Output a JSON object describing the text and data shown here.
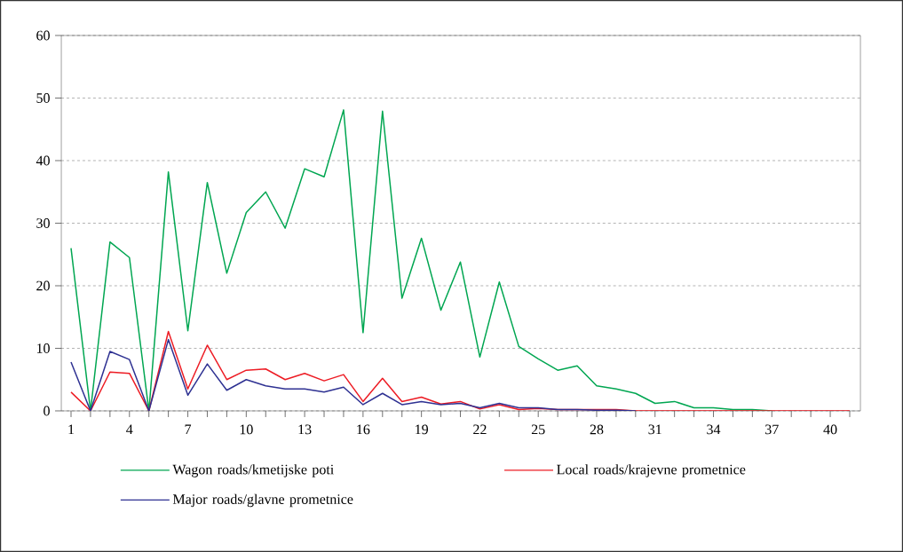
{
  "chart_data": {
    "type": "line",
    "categories": [
      "1",
      null,
      null,
      "4",
      null,
      null,
      "7",
      null,
      null,
      "10",
      null,
      null,
      "13",
      null,
      null,
      "16",
      null,
      null,
      "19",
      null,
      null,
      "22",
      null,
      null,
      "25",
      null,
      null,
      "28",
      null,
      null,
      "31",
      null,
      null,
      "34",
      null,
      null,
      "37",
      null,
      null,
      "40",
      null
    ],
    "series": [
      {
        "name": "Wagon roads/kmetijske poti",
        "color": "#00a651",
        "values": [
          26,
          0,
          27,
          24.5,
          0,
          38.2,
          12.8,
          36.5,
          22,
          31.7,
          35,
          29.2,
          38.7,
          37.4,
          48.1,
          12.5,
          47.9,
          18,
          27.6,
          16.1,
          23.8,
          8.6,
          20.6,
          10.3,
          8.3,
          6.5,
          7.2,
          4,
          3.5,
          2.8,
          1.2,
          1.5,
          0.5,
          0.5,
          0.2,
          0.2,
          0,
          null,
          null,
          null,
          null
        ]
      },
      {
        "name": "Local roads/krajevne prometnice",
        "color": "#ed1c24",
        "values": [
          3,
          0,
          6.2,
          6,
          0,
          12.7,
          3.5,
          10.5,
          5,
          6.5,
          6.7,
          5,
          6,
          4.8,
          5.8,
          1.5,
          5.2,
          1.5,
          2.2,
          1.1,
          1.5,
          0.3,
          1,
          0.2,
          0.4,
          0.2,
          0.2,
          0.2,
          0.2,
          0,
          0,
          0,
          0,
          0,
          0,
          0,
          0,
          0,
          0,
          0,
          0
        ]
      },
      {
        "name": "Major roads/glavne prometnice",
        "color": "#2e3192",
        "values": [
          7.8,
          0,
          9.5,
          8.2,
          0,
          11.4,
          2.5,
          7.5,
          3.3,
          5,
          4,
          3.5,
          3.5,
          3,
          3.8,
          1,
          2.8,
          1,
          1.5,
          1,
          1.2,
          0.5,
          1.2,
          0.5,
          0.5,
          0.2,
          0.2,
          0.1,
          0.1,
          0,
          null,
          null,
          null,
          null,
          null,
          null,
          null,
          null,
          null,
          null,
          null
        ]
      }
    ],
    "ylim": [
      0,
      60
    ],
    "yticks": [
      0,
      10,
      20,
      30,
      40,
      50,
      60
    ],
    "grid": "y",
    "legend": "bottom",
    "line_style": "solid",
    "marker": "none"
  }
}
